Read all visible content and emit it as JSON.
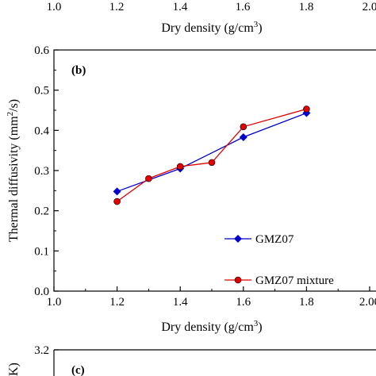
{
  "top_strip": {
    "tick_labels": [
      "1.0",
      "1.2",
      "1.4",
      "1.6",
      "1.8",
      "2.0"
    ],
    "xlabel_main": "Dry density (g/cm",
    "xlabel_sup": "3",
    "xlabel_end": ")"
  },
  "chart_data": {
    "type": "line",
    "panel_label": "(b)",
    "xlabel_main": "Dry density (g/cm",
    "xlabel_sup": "3",
    "xlabel_end": ")",
    "ylabel_main": "Thermal diffusivity (mm",
    "ylabel_sup": "2",
    "ylabel_end": "/s)",
    "xlim": [
      1.0,
      2.0
    ],
    "ylim": [
      0.0,
      0.6
    ],
    "x_ticks": [
      1.0,
      1.2,
      1.4,
      1.6,
      1.8,
      2.0
    ],
    "x_tick_labels": [
      "1.0",
      "1.2",
      "1.4",
      "1.6",
      "1.8",
      "2.00"
    ],
    "y_ticks": [
      0.0,
      0.1,
      0.2,
      0.3,
      0.4,
      0.5,
      0.6
    ],
    "y_tick_labels": [
      "0.0",
      "0.1",
      "0.2",
      "0.3",
      "0.4",
      "0.5",
      "0.6"
    ],
    "grid": false,
    "legend_position": "bottom-right",
    "series": [
      {
        "name": "GMZ07",
        "color": "#0000cc",
        "marker": "diamond",
        "x": [
          1.2,
          1.4,
          1.6,
          1.8
        ],
        "y": [
          0.248,
          0.305,
          0.383,
          0.443
        ]
      },
      {
        "name": "GMZ07 mixture",
        "color": "#e00000",
        "marker": "circle",
        "x": [
          1.2,
          1.3,
          1.4,
          1.5,
          1.6,
          1.8
        ],
        "y": [
          0.223,
          0.28,
          0.31,
          0.32,
          0.409,
          0.453
        ]
      }
    ]
  },
  "bottom_strip": {
    "y_tick_label": "3.2",
    "panel_label": "(c)",
    "ylabel_fragment": "K)"
  }
}
